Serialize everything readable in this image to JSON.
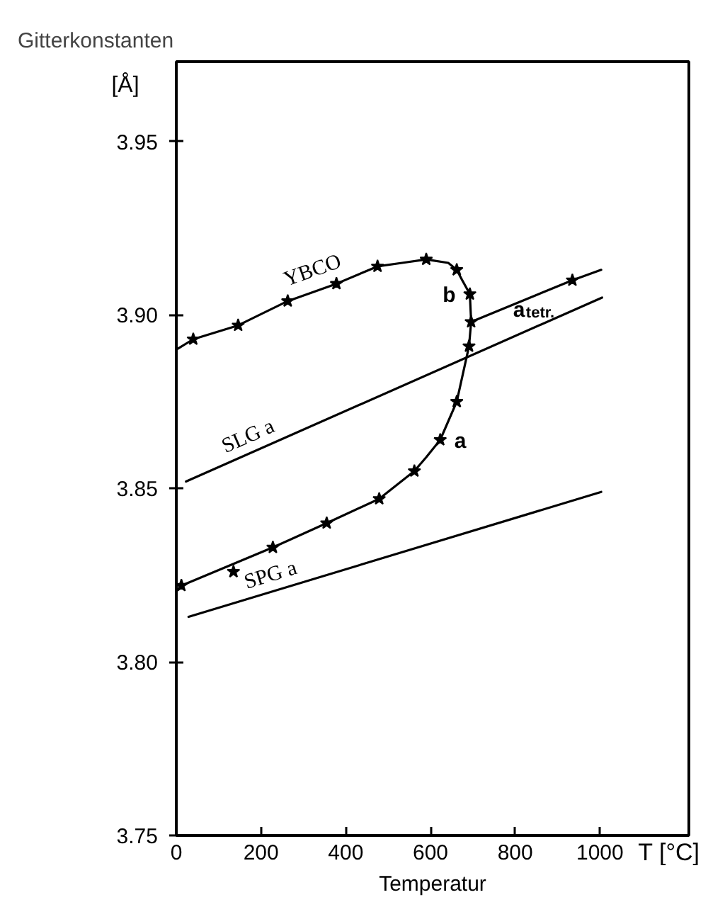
{
  "chart_data": {
    "type": "line",
    "title": "Gitterkonstanten",
    "xlabel": "Temperatur",
    "ylabel": "[Å]",
    "xlim": [
      0,
      1210
    ],
    "ylim": [
      3.75,
      3.973
    ],
    "xticks": [
      0,
      200,
      400,
      600,
      800,
      1000
    ],
    "yticks": [
      3.75,
      {
        "value": 3.8,
        "label": "3.80"
      },
      3.85,
      {
        "value": 3.9,
        "label": "3.90"
      },
      3.95
    ],
    "grid": false,
    "series": [
      {
        "name": "YBCO",
        "color": "#000000",
        "x": [
          0,
          40,
          146,
          263,
          378,
          475,
          533,
          590,
          642,
          662,
          675,
          693,
          696,
          691,
          662,
          623,
          590,
          562,
          479,
          355,
          228,
          12
        ],
        "values": [
          3.89,
          3.893,
          3.897,
          3.904,
          3.909,
          3.914,
          3.915,
          3.916,
          3.915,
          3.913,
          3.91,
          3.906,
          3.898,
          3.891,
          3.875,
          3.864,
          3.859,
          3.855,
          3.847,
          3.84,
          3.833,
          3.822
        ]
      },
      {
        "name": "a$_{tetr.}$",
        "color": "#000000",
        "x": [
          696,
          935,
          1003
        ],
        "values": [
          3.898,
          3.91,
          3.913
        ]
      },
      {
        "name": "SLG a",
        "color": "#000000",
        "x": [
          23,
          1005
        ],
        "values": [
          3.852,
          3.905
        ]
      },
      {
        "name": "SPG a",
        "color": "#000000",
        "x": [
          29,
          1003
        ],
        "values": [
          3.813,
          3.849
        ]
      },
      {
        "type": "scatter",
        "marker": "star",
        "color": "#000000",
        "x": [
          40,
          146,
          263,
          378,
          475,
          590,
          662,
          693,
          696,
          691,
          662,
          623,
          562,
          479,
          355,
          228,
          12,
          135,
          935
        ],
        "values": [
          3.893,
          3.897,
          3.904,
          3.909,
          3.914,
          3.916,
          3.913,
          3.906,
          3.898,
          3.891,
          3.875,
          3.864,
          3.855,
          3.847,
          3.84,
          3.833,
          3.822,
          3.826,
          3.91
        ]
      }
    ],
    "annotations": [
      {
        "text": "b",
        "x": 693,
        "y": 3.906
      },
      {
        "text": "a",
        "x": 623,
        "y": 3.864
      },
      "T [°C]"
    ]
  }
}
